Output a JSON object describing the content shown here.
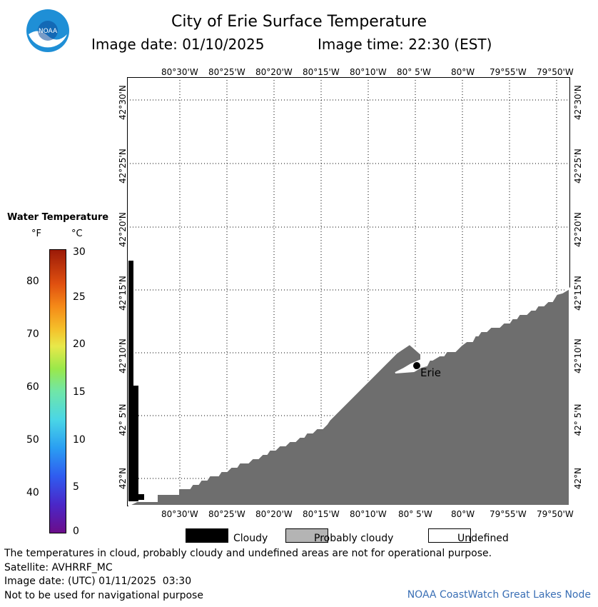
{
  "header": {
    "title": "City of Erie Surface Temperature",
    "image_date": "Image date: 01/10/2025",
    "image_time": "Image time: 22:30 (EST)"
  },
  "logo": {
    "name": "noaa-logo",
    "text": "NOAA"
  },
  "map": {
    "lon_labels": [
      "80°30'W",
      "80°25'W",
      "80°20'W",
      "80°15'W",
      "80°10'W",
      "80° 5'W",
      "80°W",
      "79°55'W",
      "79°50'W"
    ],
    "lat_labels": [
      "42°30'N",
      "42°25'N",
      "42°20'N",
      "42°15'N",
      "42°10'N",
      "42° 5'N",
      "42°N"
    ],
    "city_label": "Erie",
    "land_color": "#6e6e6e",
    "cloud_color": "#000000"
  },
  "colorbar": {
    "title": "Water Temperature",
    "unit_f": "°F",
    "unit_c": "°C",
    "f_ticks": [
      "80",
      "70",
      "60",
      "50",
      "40"
    ],
    "c_ticks": [
      "30",
      "25",
      "20",
      "15",
      "10",
      "5",
      "0"
    ]
  },
  "legend": {
    "cloudy": "Cloudy",
    "probably_cloudy": "Probably cloudy",
    "undefined": "Undefined"
  },
  "footer": {
    "disclaimer": "The temperatures in cloud, probably cloudy and undefined areas are not for operational purpose.",
    "satellite": "Satellite: AVHRRF_MC",
    "utc_date": "Image date: (UTC) 01/11/2025  03:30",
    "nav_warning": "Not to be used for navigational purpose",
    "credit": "NOAA CoastWatch Great Lakes Node"
  }
}
